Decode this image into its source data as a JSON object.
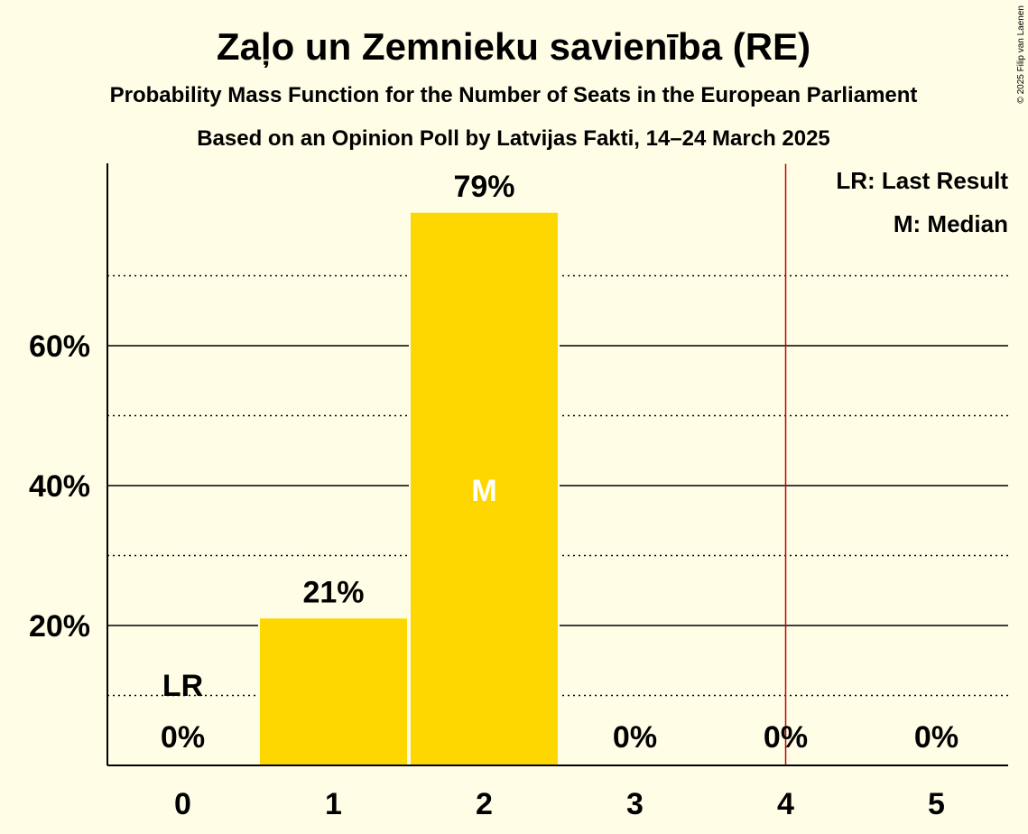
{
  "chart_data": {
    "type": "bar",
    "title": "Zaļo un Zemnieku savienība (RE)",
    "subtitle": "Probability Mass Function for the Number of Seats in the European Parliament",
    "subtitle2": "Based on an Opinion Poll by Latvijas Fakti, 14–24 March 2025",
    "categories": [
      "0",
      "1",
      "2",
      "3",
      "4",
      "5"
    ],
    "values": [
      0,
      21,
      79,
      0,
      0,
      0
    ],
    "data_labels": [
      "0%",
      "21%",
      "79%",
      "0%",
      "0%",
      "0%"
    ],
    "ylim": [
      0,
      86
    ],
    "y_ticks": [
      {
        "value": 20,
        "label": "20%"
      },
      {
        "value": 40,
        "label": "40%"
      },
      {
        "value": 60,
        "label": "60%"
      }
    ],
    "y_minor_gridlines": [
      10,
      30,
      50,
      70
    ],
    "last_result": {
      "seats": 0,
      "label": "LR"
    },
    "median": {
      "seats": 2,
      "label": "M"
    },
    "threshold_line_x": 4.5,
    "legend": {
      "placement": "top-right",
      "items": [
        "LR: Last Result",
        "M: Median"
      ]
    },
    "colors": {
      "bar": "#FFD700",
      "background": "#FFFDE6",
      "threshold_line": "#CC0000",
      "median_text": "#FFFFFF"
    },
    "copyright": "© 2025 Filip van Laenen"
  }
}
